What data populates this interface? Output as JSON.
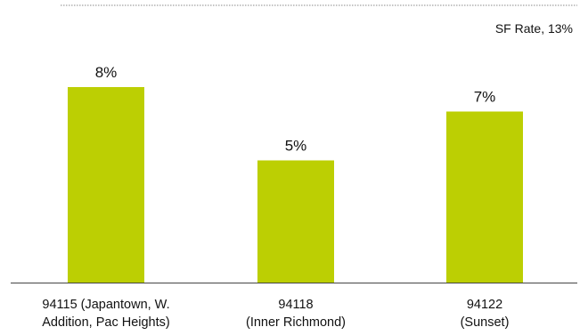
{
  "chart_data": {
    "type": "bar",
    "categories": [
      [
        "94115 (Japantown, W.",
        "Addition, Pac Heights)"
      ],
      [
        "94118",
        "(Inner Richmond)"
      ],
      [
        "94122",
        "(Sunset)"
      ]
    ],
    "values": [
      8,
      5,
      7
    ],
    "value_labels": [
      "8%",
      "5%",
      "7%"
    ],
    "bar_color": "#bccf03",
    "reference_line": {
      "label": "SF Rate, 13%",
      "value": 13,
      "style": "dotted",
      "color": "#888888"
    },
    "ylim": [
      0,
      13
    ],
    "grid": false,
    "title": "",
    "xlabel": "",
    "ylabel": ""
  }
}
